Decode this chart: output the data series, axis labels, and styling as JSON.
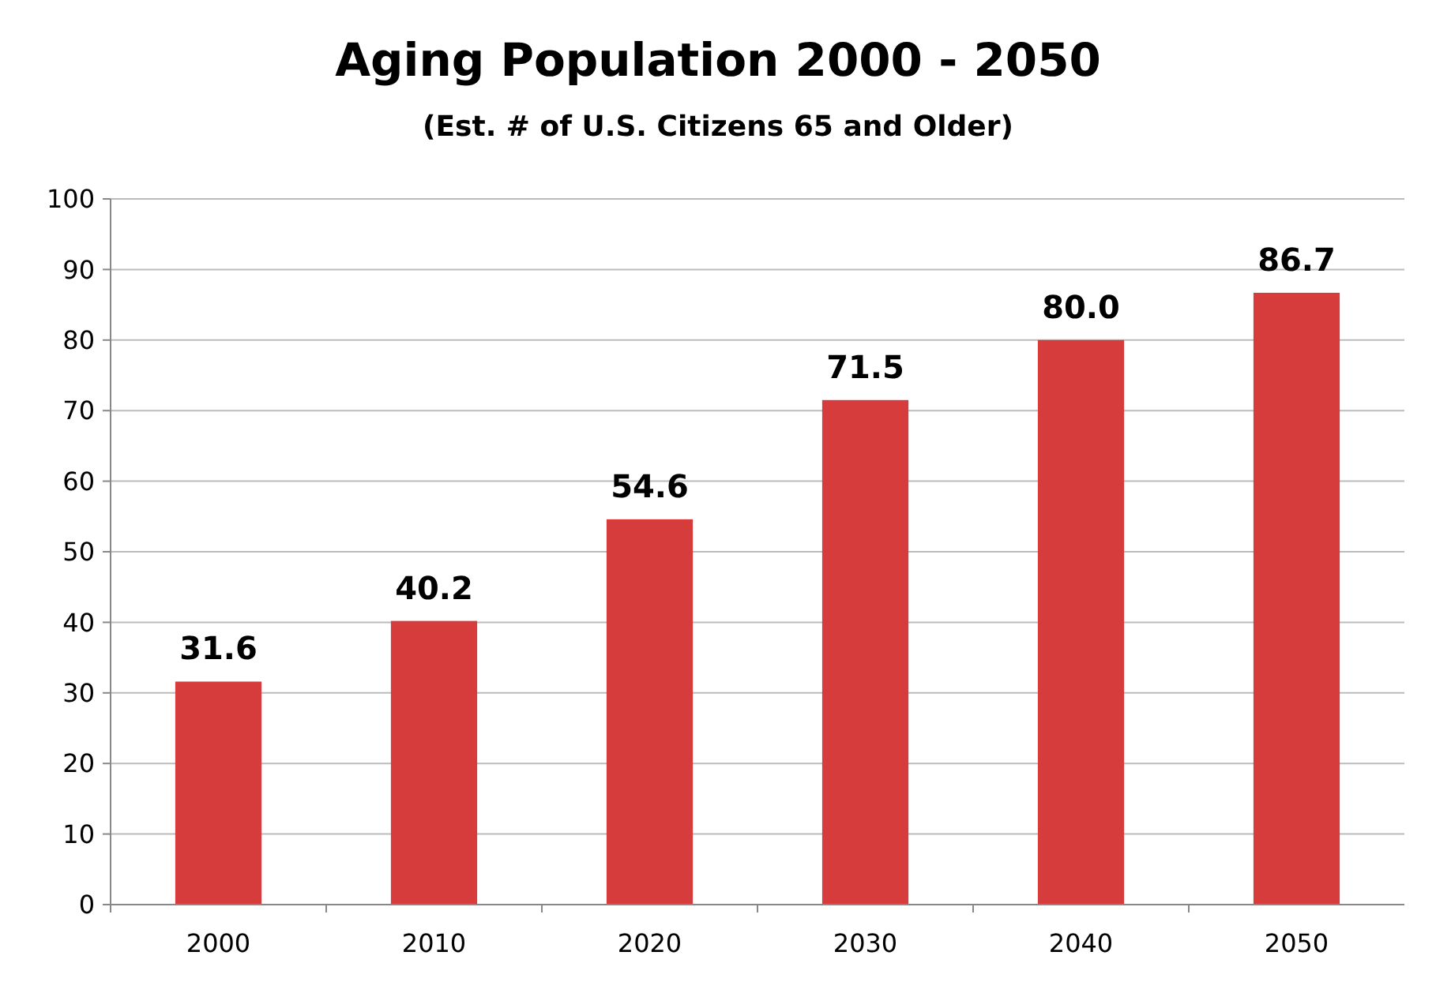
{
  "chart_data": {
    "type": "bar",
    "title": "Aging Population  2000 - 2050",
    "subtitle": "(Est. # of U.S. Citizens 65 and Older)",
    "categories": [
      "2000",
      "2010",
      "2020",
      "2030",
      "2040",
      "2050"
    ],
    "values": [
      31.6,
      40.2,
      54.6,
      71.5,
      80.0,
      86.7
    ],
    "value_labels": [
      "31.6",
      "40.2",
      "54.6",
      "71.5",
      "80.0",
      "86.7"
    ],
    "color": "#d63c3c",
    "ylim": [
      0,
      100
    ],
    "yticks": [
      0,
      10,
      20,
      30,
      40,
      50,
      60,
      70,
      80,
      90,
      100
    ],
    "grid": "y"
  }
}
